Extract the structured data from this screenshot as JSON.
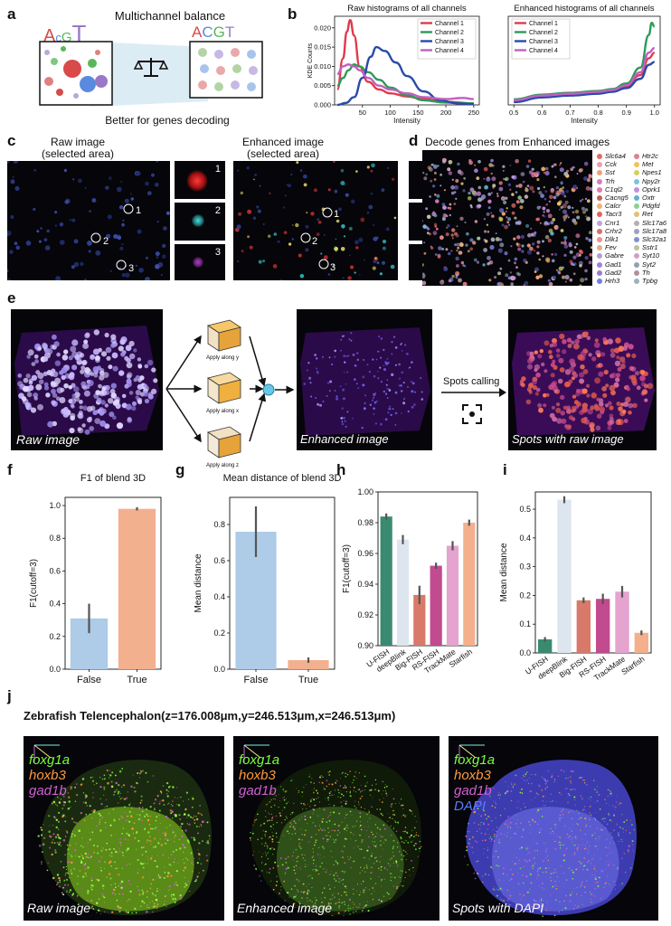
{
  "panels": {
    "a": {
      "label": "a",
      "title": "Multichannel balance",
      "left_bases": [
        "A",
        "c",
        "G",
        "T"
      ],
      "right_bases": [
        "A",
        "C",
        "G",
        "T"
      ],
      "caption": "Better for genes decoding",
      "balance_icon": "balance-scale-icon"
    },
    "b": {
      "label": "b"
    },
    "c": {
      "label": "c",
      "raw_title_1": "Raw image",
      "raw_title_2": "(selected area)",
      "enh_title_1": "Enhanced image",
      "enh_title_2": "(selected area)",
      "markers": [
        "1",
        "2",
        "3"
      ]
    },
    "d": {
      "label": "d",
      "title": "Decode genes from Enhanced images",
      "genes_col1": [
        "Slc6a4",
        "Cck",
        "Sst",
        "Trh",
        "C1ql2",
        "Cacng5",
        "Calcr",
        "Tacr3",
        "Cnr1",
        "Crhr2",
        "Dlk1",
        "Fev",
        "Gabre",
        "Gad1",
        "Gad2",
        "Hrh3"
      ],
      "genes_col2": [
        "Htr2c",
        "Met",
        "Npes1",
        "Npy2r",
        "Oprk1",
        "Oxtr",
        "Pdgfd",
        "Ret",
        "Slc17a6",
        "Slc17a8",
        "Slc32a1",
        "Sstr1",
        "Syt10",
        "Syt2",
        "Th",
        "Tpbg"
      ],
      "gene_colors_col1": [
        "#e06a6a",
        "#e6a0b0",
        "#f2a07a",
        "#d080c8",
        "#e07ab0",
        "#c06060",
        "#f0b070",
        "#e86060",
        "#c0a0e0",
        "#d07070",
        "#f09090",
        "#e0b080",
        "#b0a0d0",
        "#a080e0",
        "#9080d0",
        "#7080e0"
      ],
      "gene_colors_col2": [
        "#e08090",
        "#f0c060",
        "#d0d060",
        "#80c0e0",
        "#c090e0",
        "#60b0d0",
        "#90d090",
        "#e0c080",
        "#b0b0b0",
        "#a0a0c0",
        "#8090d0",
        "#c0c0a0",
        "#d0a0c0",
        "#90a0b0",
        "#b090a0",
        "#a0b0c0"
      ]
    },
    "e": {
      "label": "e",
      "raw_caption": "Raw image",
      "enh_caption": "Enhanced image",
      "spots_caption": "Spots with raw image",
      "arrow_caption": "Spots calling",
      "cube_captions": [
        "Apply along y",
        "Apply along x",
        "Apply along z"
      ],
      "focus_icon": "focus-frame-icon"
    },
    "f": {
      "label": "f"
    },
    "g": {
      "label": "g"
    },
    "h": {
      "label": "h"
    },
    "i": {
      "label": "i"
    },
    "j": {
      "label": "j",
      "title": "Zebrafish Telencephalon(z=176.008μm,y=246.513μm,x=246.513μm)",
      "legend_raw": [
        "foxg1a",
        "hoxb3",
        "gad1b"
      ],
      "legend_dapi": [
        "foxg1a",
        "hoxb3",
        "gad1b",
        "DAPI"
      ],
      "legend_colors": [
        "#7cff3a",
        "#ff9a3c",
        "#d060d0",
        "#5a7cff"
      ],
      "captions": [
        "Raw image",
        "Enhanced image",
        "Spots with DAPI"
      ]
    }
  },
  "chart_data": [
    {
      "id": "b-raw",
      "type": "line",
      "title": "Raw histograms of all channels",
      "xlabel": "Intensity",
      "ylabel": "KDE Counts",
      "xlim": [
        0,
        260
      ],
      "ylim": [
        0,
        0.023
      ],
      "xticks": [
        50,
        100,
        150,
        200,
        250
      ],
      "yticks": [
        "0.000",
        "0.005",
        "0.010",
        "0.015",
        "0.020"
      ],
      "legend_position": "top-right",
      "series": [
        {
          "name": "Channel 1",
          "color": "#e03a4a",
          "x": [
            5,
            15,
            22,
            28,
            35,
            45,
            60,
            80,
            100,
            130,
            160,
            200,
            250
          ],
          "y": [
            0.004,
            0.012,
            0.019,
            0.022,
            0.018,
            0.01,
            0.006,
            0.004,
            0.003,
            0.0022,
            0.0015,
            0.0008,
            0.0004
          ]
        },
        {
          "name": "Channel 2",
          "color": "#2e9a5a",
          "x": [
            5,
            15,
            25,
            35,
            45,
            60,
            80,
            100,
            130,
            160,
            200,
            250
          ],
          "y": [
            0.005,
            0.007,
            0.009,
            0.0105,
            0.01,
            0.0085,
            0.0065,
            0.0045,
            0.0025,
            0.0012,
            0.0006,
            0.0004
          ]
        },
        {
          "name": "Channel 3",
          "color": "#2a4aa8",
          "x": [
            5,
            20,
            35,
            50,
            65,
            75,
            90,
            110,
            130,
            160,
            190,
            220,
            250
          ],
          "y": [
            0.0,
            0.0005,
            0.002,
            0.007,
            0.0125,
            0.015,
            0.014,
            0.011,
            0.0075,
            0.0035,
            0.0012,
            0.0004,
            0.0002
          ]
        },
        {
          "name": "Channel 4",
          "color": "#c060c0",
          "x": [
            5,
            15,
            25,
            35,
            45,
            60,
            80,
            100,
            130,
            160,
            200,
            230,
            250
          ],
          "y": [
            0.008,
            0.01,
            0.0105,
            0.01,
            0.009,
            0.007,
            0.005,
            0.004,
            0.003,
            0.002,
            0.0015,
            0.0018,
            0.0015
          ]
        }
      ]
    },
    {
      "id": "b-enh",
      "type": "line",
      "title": "Enhanced histograms of all channels",
      "xlabel": "Intensity",
      "xlim": [
        0.48,
        1.02
      ],
      "ylim": [
        0,
        9.5
      ],
      "xticks": [
        "0.5",
        "0.6",
        "0.7",
        "0.8",
        "0.9",
        "1.0"
      ],
      "legend_position": "top-left",
      "series": [
        {
          "name": "Channel 1",
          "color": "#e03a4a",
          "x": [
            0.5,
            0.6,
            0.7,
            0.8,
            0.85,
            0.9,
            0.95,
            0.98,
            1.0
          ],
          "y": [
            0.4,
            0.9,
            1.1,
            1.3,
            1.5,
            2.0,
            3.2,
            5.0,
            5.6
          ]
        },
        {
          "name": "Channel 2",
          "color": "#2e9a5a",
          "x": [
            0.5,
            0.6,
            0.7,
            0.8,
            0.85,
            0.9,
            0.95,
            0.98,
            0.99,
            1.0
          ],
          "y": [
            0.6,
            1.1,
            1.3,
            1.5,
            1.7,
            2.3,
            4.0,
            7.5,
            8.8,
            8.4
          ]
        },
        {
          "name": "Channel 3",
          "color": "#2a4aa8",
          "x": [
            0.5,
            0.6,
            0.7,
            0.8,
            0.85,
            0.9,
            0.95,
            0.98,
            1.0
          ],
          "y": [
            0.3,
            0.8,
            1.0,
            1.2,
            1.4,
            1.8,
            2.8,
            4.3,
            4.6
          ]
        },
        {
          "name": "Channel 4",
          "color": "#c060c0",
          "x": [
            0.5,
            0.6,
            0.7,
            0.8,
            0.85,
            0.9,
            0.95,
            0.98,
            1.0
          ],
          "y": [
            0.5,
            1.0,
            1.2,
            1.4,
            1.6,
            2.1,
            3.5,
            5.6,
            6.1
          ]
        }
      ]
    },
    {
      "id": "f",
      "type": "bar",
      "title": "F1 of  blend 3D",
      "ylabel": "F1(cutoff=3)",
      "categories": [
        "False",
        "True"
      ],
      "values": [
        0.31,
        0.98
      ],
      "errors": [
        0.09,
        0.01
      ],
      "colors": [
        "#aecbe8",
        "#f3b08f"
      ],
      "ylim": [
        0,
        1.05
      ],
      "yticks": [
        "0.0",
        "0.2",
        "0.4",
        "0.6",
        "0.8",
        "1.0"
      ]
    },
    {
      "id": "g",
      "type": "bar",
      "title": "Mean distance of blend 3D",
      "ylabel": "Mean distance",
      "categories": [
        "False",
        "True"
      ],
      "values": [
        0.76,
        0.05
      ],
      "errors": [
        0.14,
        0.015
      ],
      "colors": [
        "#aecbe8",
        "#f3b08f"
      ],
      "ylim": [
        0,
        0.95
      ],
      "yticks": [
        "0.0",
        "0.2",
        "0.4",
        "0.6",
        "0.8"
      ]
    },
    {
      "id": "h",
      "type": "bar",
      "ylabel": "F1(cutoff=3)",
      "categories": [
        "U-FISH",
        "deepBlink",
        "Big-FISH",
        "RS-FISH",
        "TrackMate",
        "Starfish"
      ],
      "values": [
        0.984,
        0.969,
        0.933,
        0.952,
        0.965,
        0.98
      ],
      "errors": [
        0.002,
        0.003,
        0.006,
        0.002,
        0.003,
        0.002
      ],
      "colors": [
        "#3a8a72",
        "#dde6ee",
        "#d9796a",
        "#c24a8e",
        "#e5a3cf",
        "#f4b08c"
      ],
      "ylim": [
        0.9,
        1.0
      ],
      "yticks": [
        "0.90",
        "0.92",
        "0.94",
        "0.96",
        "0.98",
        "1.00"
      ]
    },
    {
      "id": "i",
      "type": "bar",
      "ylabel": "Mean distance",
      "categories": [
        "U-FISH",
        "deepBlink",
        "Big-FISH",
        "RS-FISH",
        "TrackMate",
        "Starfish"
      ],
      "values": [
        0.047,
        0.533,
        0.183,
        0.188,
        0.213,
        0.07
      ],
      "errors": [
        0.008,
        0.012,
        0.01,
        0.018,
        0.02,
        0.008
      ],
      "colors": [
        "#3a8a72",
        "#dde6ee",
        "#d9796a",
        "#c24a8e",
        "#e5a3cf",
        "#f4b08c"
      ],
      "ylim": [
        0,
        0.56
      ],
      "yticks": [
        "0.0",
        "0.1",
        "0.2",
        "0.3",
        "0.4",
        "0.5"
      ]
    }
  ]
}
